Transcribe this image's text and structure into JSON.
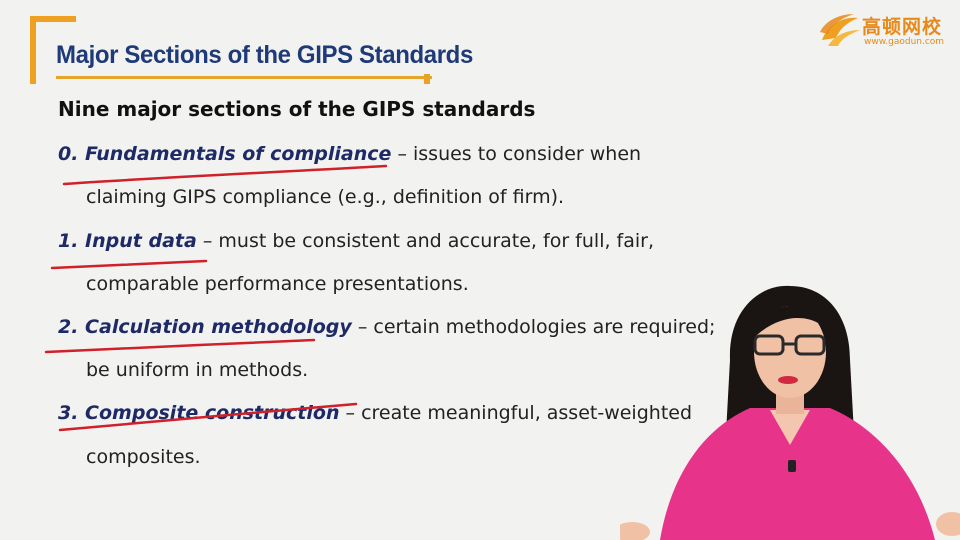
{
  "slide": {
    "title": "Major Sections of the GIPS Standards",
    "subtitle": "Nine major sections of the GIPS standards",
    "items": [
      {
        "term": "0. Fundamentals of compliance",
        "desc": " – issues to consider when",
        "cont": "claiming GIPS compliance (e.g., definition of firm)."
      },
      {
        "term": "1. Input data",
        "desc": " – must be consistent and accurate, for full, fair,",
        "cont": "comparable performance presentations."
      },
      {
        "term": "2. Calculation methodology",
        "desc": " – certain methodologies are required;",
        "cont": "be uniform in methods."
      },
      {
        "term": "3. Composite construction",
        "desc": " – create meaningful, asset-weighted",
        "cont": "composites."
      }
    ]
  },
  "logo": {
    "name": "高顿网校",
    "url": "www.gaodun.com",
    "icon": "flame-swirl-logo-icon"
  },
  "colors": {
    "title": "#1e3a78",
    "term": "#1e2a66",
    "bracket": "#f0a020",
    "annotation_underline": "#d0202a",
    "logo": "#e88a1a",
    "presenter_top": "#e8338a"
  }
}
